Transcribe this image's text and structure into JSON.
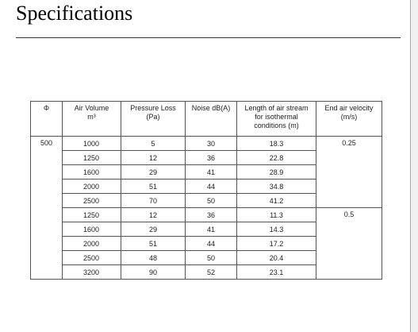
{
  "header": {
    "title": "Specifications"
  },
  "table": {
    "columns": [
      [
        "Φ"
      ],
      [
        "Air Volume",
        "m³"
      ],
      [
        "Pressure Loss",
        "(Pa)"
      ],
      [
        "Noise dB(A)"
      ],
      [
        "Length of air stream",
        "for isothermal",
        "conditions (m)"
      ],
      [
        "End air velocity",
        "(m/s)"
      ]
    ],
    "diameter": 500,
    "groups": [
      {
        "velocity": 0.25,
        "rows": [
          [
            1000,
            5,
            30,
            18.3
          ],
          [
            1250,
            12,
            36,
            22.8
          ],
          [
            1600,
            29,
            41,
            28.9
          ],
          [
            2000,
            51,
            44,
            34.8
          ],
          [
            2500,
            70,
            50,
            41.2
          ]
        ]
      },
      {
        "velocity": 0.5,
        "rows": [
          [
            1250,
            12,
            36,
            11.3
          ],
          [
            1600,
            29,
            41,
            14.3
          ],
          [
            2000,
            51,
            44,
            17.2
          ],
          [
            2500,
            48,
            50,
            20.4
          ],
          [
            3200,
            90,
            52,
            23.1
          ]
        ]
      }
    ]
  }
}
